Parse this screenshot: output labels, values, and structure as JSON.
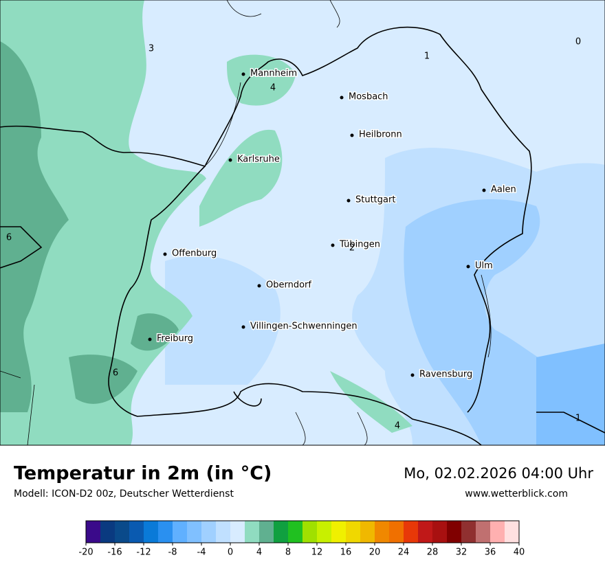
{
  "map": {
    "cities": [
      "Mannheim",
      "Mosbach",
      "Heilbronn",
      "Karlsruhe",
      "Aalen",
      "Stuttgart",
      "Tübingen",
      "Offenburg",
      "Ulm",
      "Oberndorf",
      "Villingen-Schwenningen",
      "Freiburg",
      "Ravensburg"
    ],
    "contour_labels": [
      3,
      1,
      0,
      4,
      6,
      2,
      1,
      4,
      6
    ]
  },
  "footer": {
    "title": "Temperatur in 2m (in °C)",
    "subtitle": "Modell: ICON-D2 00z, Deutscher Wetterdienst",
    "date": "Mo, 02.02.2026 04:00 Uhr",
    "site": "www.wetterblick.com"
  },
  "colorbar": {
    "ticks": [
      -20,
      -16,
      -12,
      -8,
      -4,
      0,
      4,
      8,
      12,
      16,
      20,
      24,
      28,
      32,
      36,
      40
    ],
    "colors": [
      "#3a0a8a",
      "#0a3a80",
      "#0a4a8a",
      "#0a5ab0",
      "#0a7ad8",
      "#2a90f0",
      "#60b0ff",
      "#80c0ff",
      "#a0d0ff",
      "#c0e0ff",
      "#d8ecff",
      "#90dcc0",
      "#60b090",
      "#10a040",
      "#20c020",
      "#a0e000",
      "#c8f000",
      "#f0f000",
      "#f0d800",
      "#f0b800",
      "#f08800",
      "#f07000",
      "#e83808",
      "#c01818",
      "#a81010",
      "#800000",
      "#903030",
      "#c07070",
      "#ffb0b0",
      "#ffe0e0"
    ]
  }
}
